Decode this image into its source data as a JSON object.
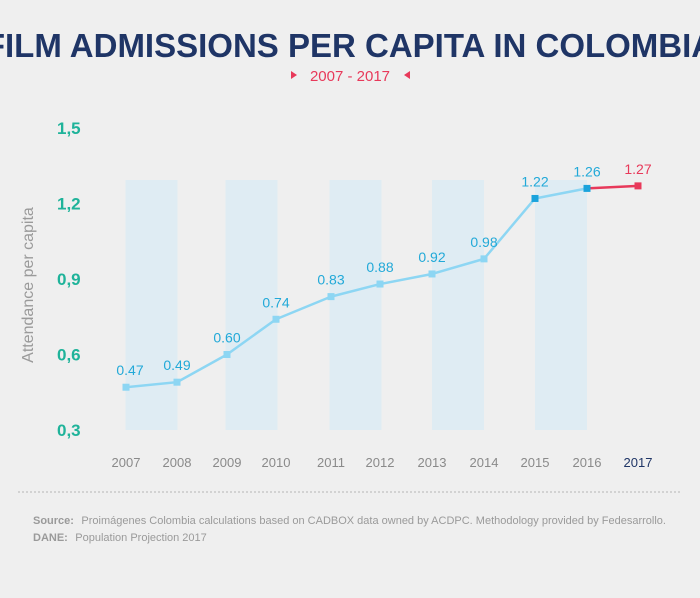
{
  "chart_data": {
    "type": "line",
    "title": "FILM ADMISSIONS PER CAPITA IN COLOMBIA",
    "subtitle": "2007 - 2017",
    "ylabel": "Attendance per capita",
    "xlabel": "",
    "ylim": [
      0.3,
      1.5
    ],
    "yticks": [
      "0,3",
      "0,6",
      "0,9",
      "1,2",
      "1,5"
    ],
    "ytick_values": [
      0.3,
      0.6,
      0.9,
      1.2,
      1.5
    ],
    "categories": [
      "2007",
      "2008",
      "2009",
      "2010",
      "2011",
      "2012",
      "2013",
      "2014",
      "2015",
      "2016",
      "2017"
    ],
    "values": [
      0.47,
      0.49,
      0.6,
      0.74,
      0.83,
      0.88,
      0.92,
      0.98,
      1.22,
      1.26,
      1.27
    ],
    "value_labels": [
      "0.47",
      "0.49",
      "0.60",
      "0.74",
      "0.83",
      "0.88",
      "0.92",
      "0.98",
      "1.22",
      "1.26",
      "1.27"
    ],
    "highlight_category": "2017",
    "grid": false,
    "colors": {
      "line": "#8dd6f3",
      "marker": "#8dd6f3",
      "marker_dark": "#1aa3dc",
      "highlight": "#e8395a",
      "band": "#dcebf3"
    }
  },
  "source": {
    "label": "Source:",
    "text": "Proimágenes Colombia calculations based on CADBOX data owned by ACDPC. Methodology provided by Fedesarrollo.",
    "label2": "DANE:",
    "text2": "Population Projection 2017"
  }
}
